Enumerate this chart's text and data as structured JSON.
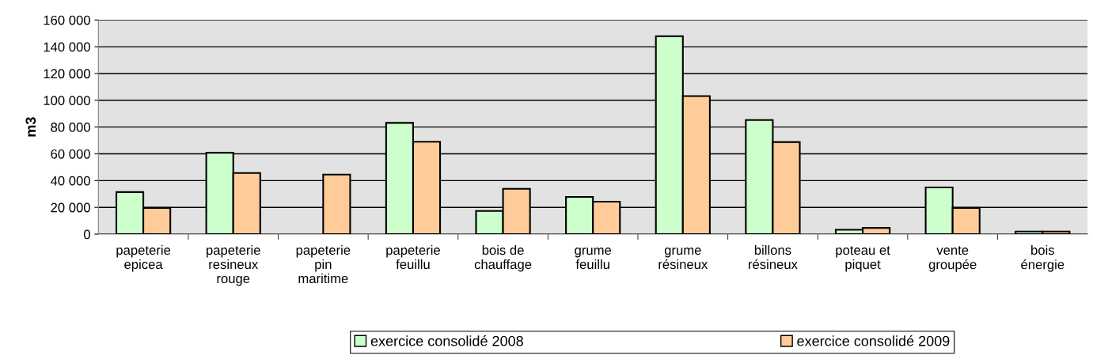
{
  "chart_data": {
    "type": "bar",
    "ylabel": "m3",
    "categories": [
      "papeterie\nepicea",
      "papeterie\nresineux\nrouge",
      "papeterie\npin\nmaritime",
      "papeterie\nfeuillu",
      "bois de\nchauffage",
      "grume\nfeuillu",
      "grume\nrésineux",
      "billons\nrésineux",
      "poteau et\npiquet",
      "vente\ngroupée",
      "bois\nénergie"
    ],
    "series": [
      {
        "name": "exercice consolidé 2008",
        "color": "#ccffcc",
        "values": [
          31400,
          60800,
          null,
          83100,
          17300,
          27800,
          147800,
          85300,
          3300,
          34900,
          2000
        ]
      },
      {
        "name": "exercice consolidé 2009",
        "color": "#ffcc99",
        "values": [
          19600,
          45700,
          44500,
          69000,
          33900,
          24300,
          103100,
          68800,
          4700,
          19600,
          2000
        ]
      }
    ],
    "ylim": [
      0,
      160000
    ],
    "yticks": [
      0,
      {
        "value": 20000,
        "label": "20 000"
      },
      {
        "value": 40000,
        "label": "40 000"
      },
      {
        "value": 60000,
        "label": "60 000"
      },
      {
        "value": 80000,
        "label": "80 000"
      },
      {
        "value": 100000,
        "label": "100 000"
      },
      {
        "value": 120000,
        "label": "120 000"
      },
      {
        "value": 140000,
        "label": "140 000"
      },
      {
        "value": 160000,
        "label": "160 000"
      }
    ],
    "grid": "y",
    "legend": "bottom"
  }
}
